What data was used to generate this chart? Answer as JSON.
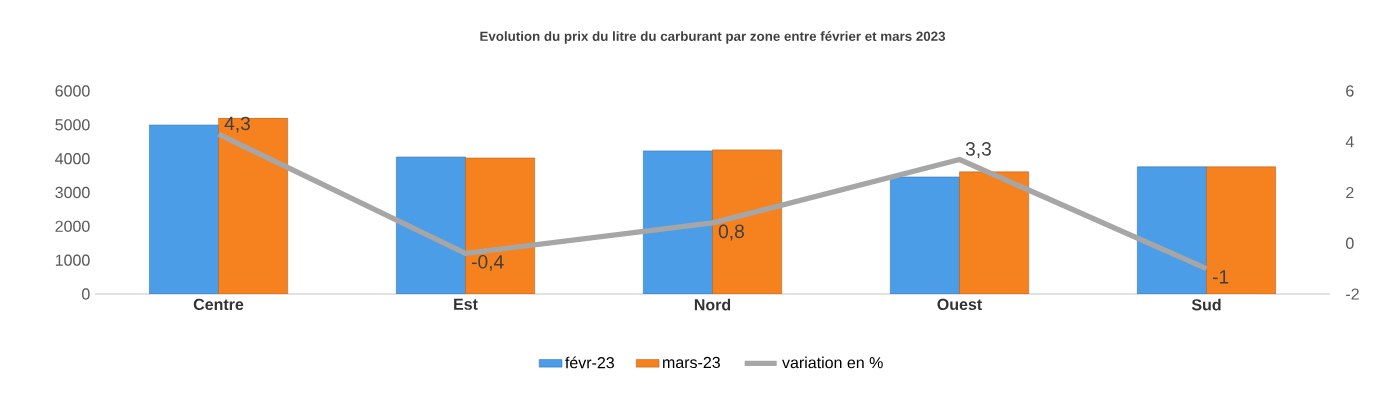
{
  "chart_data": {
    "type": "bar",
    "title": "Evolution du prix du litre du carburant par zone entre février et mars 2023",
    "categories": [
      "Centre",
      "Est",
      "Nord",
      "Ouest",
      "Sud"
    ],
    "series": [
      {
        "name": "févr-23",
        "color": "#4a9de6",
        "values": [
          5000,
          4050,
          4230,
          3460,
          3760
        ]
      },
      {
        "name": "mars-23",
        "color": "#f5821f",
        "values": [
          5200,
          4020,
          4260,
          3610,
          3760
        ]
      },
      {
        "name": "variation en %",
        "type": "line",
        "axis": "y2",
        "color": "#a6a6a6",
        "values": [
          4.3,
          -0.4,
          0.8,
          3.3,
          -1
        ],
        "value_labels": [
          "4,3",
          "-0,4",
          "0,8",
          "3,3",
          "-1"
        ]
      }
    ],
    "ylim": [
      0,
      6000
    ],
    "yticks": [
      0,
      1000,
      2000,
      3000,
      4000,
      5000,
      6000
    ],
    "y2lim": [
      -2,
      6
    ],
    "y2ticks": [
      -2,
      0,
      2,
      4,
      6
    ],
    "legend": "bottom"
  }
}
